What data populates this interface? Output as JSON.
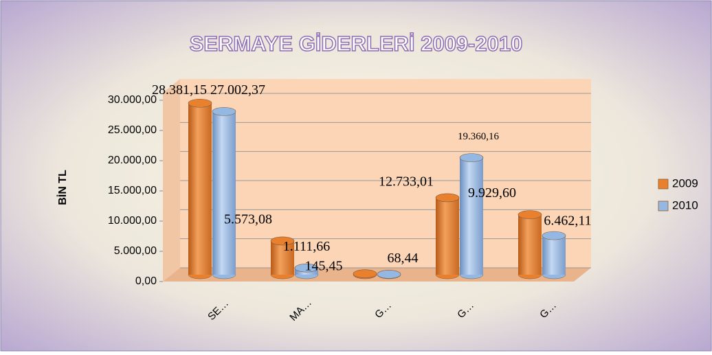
{
  "chart_data": {
    "type": "bar3d",
    "title": "SERMAYE GİDERLERİ 2009-2010",
    "y_label": "BİN TL",
    "categories": [
      "SE…",
      "MA…",
      "G…",
      "G…",
      "G…"
    ],
    "series": [
      {
        "name": "2009",
        "color": "#e8802e",
        "values": [
          28381.15,
          5573.08,
          145.45,
          12733.01,
          9929.6
        ],
        "value_labels": [
          "28.381,15",
          "5.573,08",
          "145,45",
          "12.733,01",
          "9.929,60"
        ]
      },
      {
        "name": "2010",
        "color": "#95b8e3",
        "values": [
          27002.37,
          1111.66,
          68.44,
          19360.16,
          6462.11
        ],
        "value_labels": [
          "27.002,37",
          "1.111,66",
          "68,44",
          "19.360,16",
          "6.462,11"
        ]
      }
    ],
    "ylim": [
      0,
      30000
    ],
    "yticks": [
      {
        "value": 0,
        "label": "0,00"
      },
      {
        "value": 5000,
        "label": "5.000,00"
      },
      {
        "value": 10000,
        "label": "10.000,00"
      },
      {
        "value": 15000,
        "label": "15.000,00"
      },
      {
        "value": 20000,
        "label": "20.000,00"
      },
      {
        "value": 25000,
        "label": "25.000,00"
      },
      {
        "value": 30000,
        "label": "30.000,00"
      }
    ],
    "grid": true,
    "legend": "right"
  }
}
